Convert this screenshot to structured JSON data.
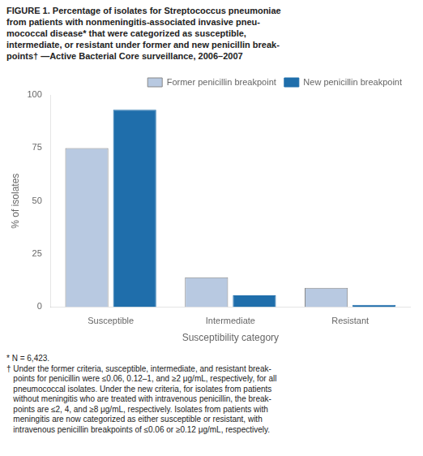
{
  "chart_data": {
    "type": "bar",
    "title": [
      "FIGURE 1. Percentage of isolates for Streptococcus pneumoniae",
      "from patients with nonmeningitis-associated invasive pneu-",
      "mococcal disease* that were categorized as susceptible,",
      "intermediate, or resistant under former and new penicillin break-",
      "points† —Active Bacterial Core surveillance, 2006–2007"
    ],
    "annotations": [
      "* N = 6,423.",
      "† Under the former criteria, susceptible, intermediate, and resistant break-",
      "   points for penicillin were ≤0.06, 0.12–1, and ≥2 μg/mL, respectively, for all",
      "   pneumococcal isolates. Under the new criteria, for isolates from patients",
      "   without meningitis who are treated with intravenous penicillin, the break-",
      "   points are ≤2, 4, and ≥8 μg/mL, respectively. Isolates from patients with",
      "   meningitis are now categorized as either susceptible or resistant, with",
      "   intravenous penicillin breakpoints of ≤0.06 or ≥0.12 μg/mL, respectively."
    ],
    "categories": [
      "Susceptible",
      "Intermediate",
      "Resistant"
    ],
    "series": [
      {
        "name": "Former penicillin breakpoint",
        "color": "#b8c9e1",
        "values": [
          74.9,
          14.0,
          9.0
        ]
      },
      {
        "name": "New penicillin breakpoint",
        "color": "#1f6eab",
        "values": [
          93.0,
          5.5,
          1.0
        ]
      }
    ],
    "xlabel": "Susceptibility category",
    "ylabel": "% of isolates",
    "ylim": [
      0,
      100
    ],
    "yticks": [
      0,
      25,
      50,
      75,
      100
    ],
    "grid": false,
    "legend": "upper right"
  }
}
